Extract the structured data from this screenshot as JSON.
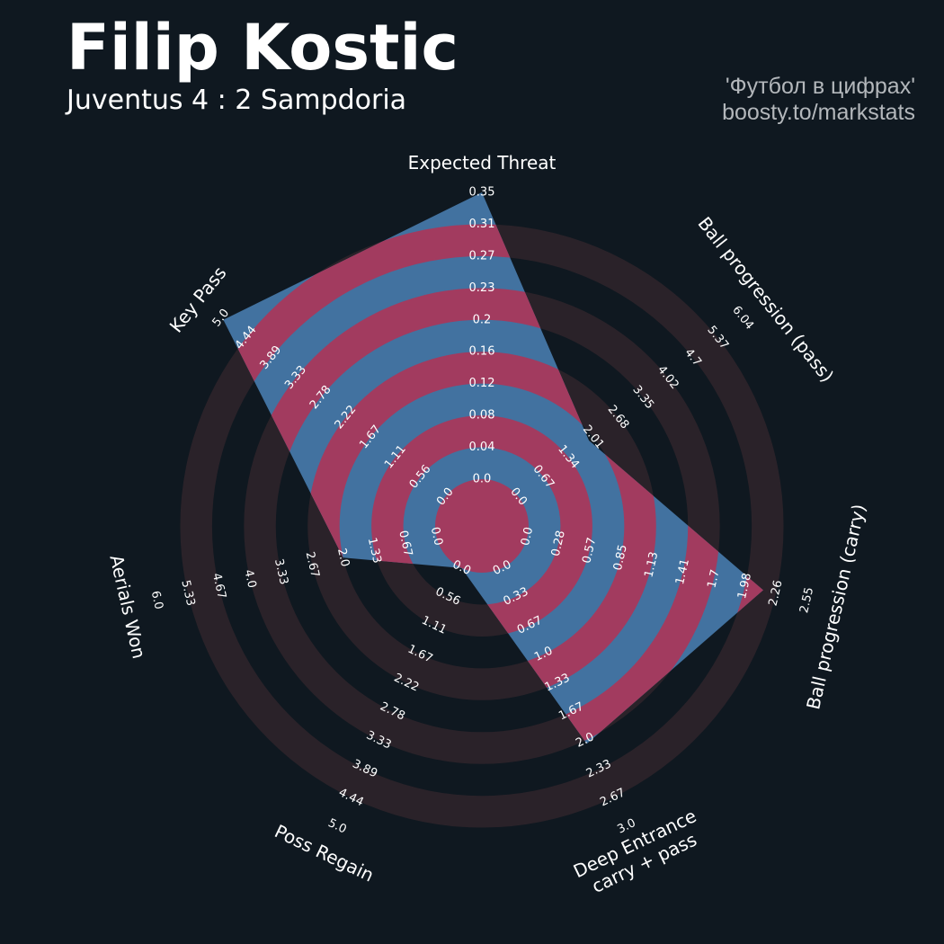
{
  "header": {
    "player_name": "Filip Kostic",
    "match": "Juventus 4 : 2 Sampdoria",
    "credit_line1": "'Футбол в цифрах'",
    "credit_line2": "boosty.to/markstats"
  },
  "colors": {
    "background": "#0f1820",
    "ring_band": "#2a2229",
    "player_fill": "#4272a0",
    "band_overlap": "#a23b5f",
    "text": "#ffffff"
  },
  "chart_data": {
    "type": "radar",
    "params": [
      "Expected Threat",
      "Ball progression (pass)",
      "Ball progression (carry)",
      "Deep Entrance\ncarry + pass",
      "Poss Regain",
      "Aerials Won",
      "Key Pass"
    ],
    "ranges": [
      [
        0.0,
        0.35
      ],
      [
        0.0,
        6.04
      ],
      [
        0.0,
        2.55
      ],
      [
        0.0,
        3.0
      ],
      [
        0.0,
        5.0
      ],
      [
        0.0,
        6.0
      ],
      [
        0.0,
        5.0
      ]
    ],
    "tick_labels": [
      [
        "0.0",
        "0.04",
        "0.08",
        "0.12",
        "0.16",
        "0.2",
        "0.23",
        "0.27",
        "0.31",
        "0.35"
      ],
      [
        "0.0",
        "0.67",
        "1.34",
        "2.01",
        "2.68",
        "3.35",
        "4.02",
        "4.7",
        "5.37",
        "6.04"
      ],
      [
        "0.0",
        "0.28",
        "0.57",
        "0.85",
        "1.13",
        "1.41",
        "1.7",
        "1.98",
        "2.26",
        "2.55"
      ],
      [
        "0.0",
        "0.33",
        "0.67",
        "1.0",
        "1.33",
        "1.67",
        "2.0",
        "2.33",
        "2.67",
        "3.0"
      ],
      [
        "0.0",
        "0.56",
        "1.11",
        "1.67",
        "2.22",
        "2.78",
        "3.33",
        "3.89",
        "4.44",
        "5.0"
      ],
      [
        "0.0",
        "0.67",
        "1.33",
        "2.0",
        "2.67",
        "3.33",
        "4.0",
        "4.67",
        "5.33",
        "6.0"
      ],
      [
        "0.0",
        "0.56",
        "1.11",
        "1.67",
        "2.22",
        "2.78",
        "3.33",
        "3.89",
        "4.44",
        "5.0"
      ]
    ],
    "series": [
      {
        "values": [
          0.35,
          1.9,
          2.15,
          2.04,
          0.0,
          2.0,
          4.95
        ]
      }
    ]
  }
}
